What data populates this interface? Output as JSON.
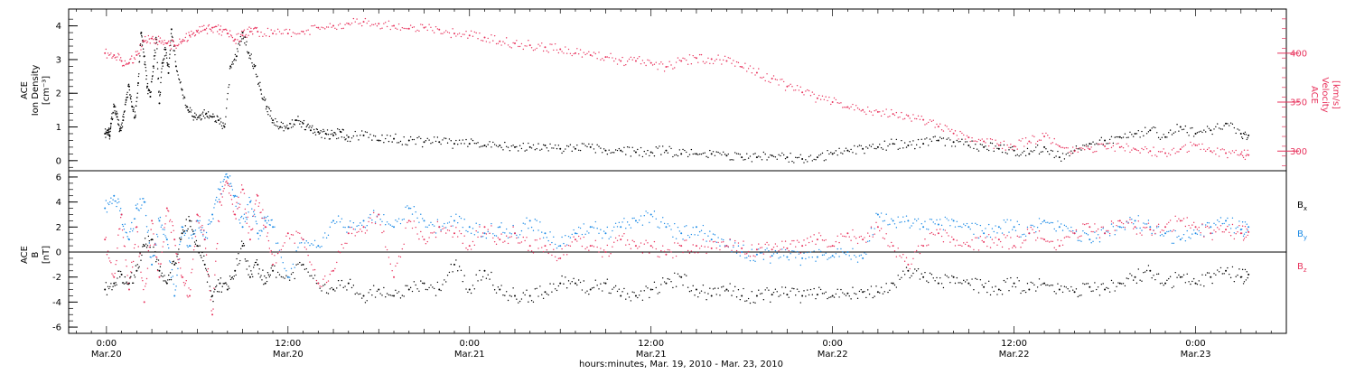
{
  "colors": {
    "black": "#000000",
    "velocity": "#e8335d",
    "bx": "#000000",
    "by": "#1a8ae6",
    "bz": "#e8335d"
  },
  "chart_data": [
    {
      "type": "scatter",
      "panel": "top",
      "ylabel_left": [
        "ACE",
        "Ion Density",
        "[cm⁻³]"
      ],
      "ylabel_right": [
        "ACE",
        "Velocity",
        "[km/s]"
      ],
      "ylim_left": [
        -0.3,
        4.5
      ],
      "yticks_left": [
        "0",
        "1",
        "2",
        "3",
        "4"
      ],
      "ylim_right": [
        280,
        445
      ],
      "yticks_right": [
        "300",
        "350",
        "400"
      ],
      "series": [
        {
          "axis": "left",
          "color_key": "black",
          "x": [
            -0.1,
            0.1,
            0.2,
            0.3,
            0.5,
            0.7,
            0.9,
            1.1,
            1.3,
            1.5,
            1.7,
            1.9,
            2.1,
            2.3,
            2.5,
            2.7,
            2.9,
            3.1,
            3.3,
            3.5,
            3.7,
            3.9,
            4.1,
            4.3,
            4.6,
            5.0,
            5.4,
            5.8,
            6.2,
            6.6,
            7.0,
            7.4,
            7.8,
            8.2,
            8.6,
            9.0,
            9.4,
            9.8,
            10.2,
            10.6,
            11.0,
            11.5,
            12.0,
            12.5,
            13.0,
            13.5,
            14.0,
            14.5,
            15.0,
            15.5,
            16.0,
            17.0,
            18.0,
            19.0,
            20.0,
            21.0,
            22.0,
            23.0,
            24.0,
            25.0,
            26.0,
            27.0,
            28.0,
            29.0,
            30.0,
            31.0,
            32.0,
            33.0,
            34.0,
            35.0,
            36.0,
            37.0,
            38.0,
            39.0,
            40.0,
            41.0,
            42.0,
            43.0,
            44.0,
            45.0,
            46.0,
            47.0,
            48.0,
            49.0,
            50.0,
            51.0,
            52.0,
            53.0,
            54.0,
            55.0,
            56.0,
            57.0,
            58.0,
            59.0,
            60.0,
            61.0,
            62.0,
            63.0,
            64.0,
            65.0,
            66.0,
            67.0,
            68.0,
            69.0,
            70.0,
            71.0,
            72.0,
            73.0,
            74.0,
            75.0,
            75.5
          ],
          "y": [
            0.8,
            0.9,
            0.75,
            1.1,
            1.6,
            1.3,
            0.9,
            1.2,
            1.8,
            2.2,
            1.6,
            1.3,
            2.3,
            3.8,
            3.1,
            2.2,
            1.9,
            2.8,
            3.6,
            1.7,
            2.9,
            3.3,
            2.6,
            3.9,
            2.8,
            2.1,
            1.5,
            1.3,
            1.35,
            1.4,
            1.3,
            1.2,
            1.0,
            2.8,
            3.1,
            3.8,
            3.2,
            2.8,
            2.1,
            1.6,
            1.2,
            1.0,
            0.95,
            1.2,
            1.1,
            0.9,
            0.85,
            0.8,
            0.75,
            0.85,
            0.7,
            0.75,
            0.6,
            0.65,
            0.6,
            0.55,
            0.55,
            0.5,
            0.5,
            0.45,
            0.45,
            0.4,
            0.4,
            0.45,
            0.35,
            0.35,
            0.4,
            0.3,
            0.3,
            0.25,
            0.25,
            0.3,
            0.2,
            0.2,
            0.2,
            0.15,
            0.1,
            0.1,
            0.15,
            0.1,
            0.05,
            0.1,
            0.2,
            0.3,
            0.35,
            0.4,
            0.5,
            0.45,
            0.5,
            0.6,
            0.55,
            0.45,
            0.4,
            0.35,
            0.3,
            0.2,
            0.4,
            0.1,
            0.3,
            0.5,
            0.6,
            0.7,
            0.8,
            0.9,
            0.7,
            1.0,
            0.8,
            0.9,
            1.1,
            0.8,
            0.75
          ]
        },
        {
          "axis": "right",
          "color_key": "velocity",
          "x": [
            -0.1,
            0.5,
            1.0,
            1.5,
            2.0,
            2.5,
            3.0,
            3.5,
            4.0,
            4.5,
            5.0,
            5.5,
            6.0,
            6.5,
            7.0,
            7.5,
            8.0,
            8.5,
            9.0,
            9.5,
            10.0,
            11.0,
            12.0,
            13.0,
            14.0,
            15.0,
            16.0,
            17.0,
            18.0,
            19.0,
            20.0,
            21.0,
            22.0,
            23.0,
            24.0,
            25.0,
            26.0,
            27.0,
            28.0,
            29.0,
            30.0,
            31.0,
            32.0,
            33.0,
            34.0,
            35.0,
            36.0,
            37.0,
            38.0,
            39.0,
            40.0,
            41.0,
            42.0,
            43.0,
            44.0,
            45.0,
            46.0,
            47.0,
            48.0,
            49.0,
            50.0,
            51.0,
            52.0,
            53.0,
            54.0,
            55.0,
            56.0,
            57.0,
            58.0,
            59.0,
            60.0,
            61.0,
            62.0,
            63.0,
            64.0,
            65.0,
            66.0,
            67.0,
            68.0,
            69.0,
            70.0,
            71.0,
            72.0,
            73.0,
            74.0,
            75.0,
            75.5
          ],
          "y": [
            400,
            398,
            392,
            390,
            398,
            412,
            415,
            412,
            410,
            408,
            412,
            418,
            422,
            424,
            426,
            424,
            420,
            414,
            418,
            422,
            422,
            420,
            420,
            422,
            426,
            428,
            430,
            432,
            430,
            428,
            425,
            426,
            424,
            420,
            418,
            416,
            412,
            410,
            408,
            406,
            404,
            400,
            398,
            396,
            392,
            392,
            390,
            386,
            392,
            395,
            394,
            392,
            386,
            380,
            374,
            366,
            360,
            354,
            350,
            345,
            342,
            340,
            338,
            336,
            332,
            325,
            318,
            314,
            310,
            306,
            305,
            310,
            315,
            305,
            300,
            302,
            305,
            304,
            302,
            300,
            298,
            302,
            306,
            300,
            298,
            297,
            296
          ]
        }
      ]
    },
    {
      "type": "scatter",
      "panel": "bottom",
      "ylabel_left": [
        "ACE",
        "B",
        "[nT]"
      ],
      "ylim": [
        -6.5,
        6.5
      ],
      "yticks": [
        "-6",
        "-4",
        "-2",
        "0",
        "2",
        "4",
        "6"
      ],
      "legend": [
        "Bx",
        "By",
        "Bz"
      ],
      "series": [
        {
          "name": "Bx",
          "color_key": "bx",
          "x": [
            -0.1,
            0.5,
            1.0,
            1.5,
            2.0,
            2.5,
            3.0,
            3.5,
            4.0,
            4.5,
            5.0,
            5.5,
            6.0,
            6.5,
            7.0,
            7.5,
            8.0,
            8.5,
            9.0,
            9.5,
            10.0,
            10.5,
            11.0,
            12.0,
            13.0,
            14.0,
            15.0,
            16.0,
            17.0,
            18.0,
            19.0,
            20.0,
            21.0,
            22.0,
            23.0,
            24.0,
            25.0,
            26.0,
            27.0,
            28.0,
            29.0,
            30.0,
            31.0,
            32.0,
            33.0,
            34.0,
            35.0,
            36.0,
            37.0,
            38.0,
            39.0,
            40.0,
            41.0,
            42.0,
            43.0,
            44.0,
            45.0,
            46.0,
            47.0,
            48.0,
            49.0,
            50.0,
            51.0,
            52.0,
            53.0,
            54.0,
            55.0,
            56.0,
            57.0,
            58.0,
            59.0,
            60.0,
            61.0,
            62.0,
            63.0,
            64.0,
            65.0,
            66.0,
            67.0,
            68.0,
            69.0,
            70.0,
            71.0,
            72.0,
            73.0,
            74.0,
            75.0,
            75.5
          ],
          "y": [
            -3.0,
            -2.5,
            -1.8,
            -2.5,
            -1.5,
            0.5,
            1.0,
            -1.5,
            -2.5,
            -1.0,
            1.5,
            2.5,
            0.5,
            -1.0,
            -3.5,
            -2.5,
            -3.0,
            -1.5,
            0.5,
            -2.0,
            -1.0,
            -2.5,
            -1.5,
            -2.0,
            -1.0,
            -2.5,
            -3.0,
            -2.5,
            -3.5,
            -3.0,
            -3.5,
            -3.0,
            -2.5,
            -3.0,
            -1.0,
            -3.0,
            -1.5,
            -3.0,
            -3.5,
            -3.5,
            -3.2,
            -2.5,
            -2.5,
            -3.0,
            -2.5,
            -3.5,
            -3.5,
            -3.0,
            -2.5,
            -2.0,
            -3.0,
            -3.5,
            -3.0,
            -3.5,
            -3.5,
            -3.4,
            -3.4,
            -3.5,
            -3.4,
            -3.5,
            -3.3,
            -3.2,
            -3.2,
            -2.5,
            -1.5,
            -2.0,
            -2.5,
            -2.0,
            -2.5,
            -2.8,
            -3.0,
            -2.5,
            -3.0,
            -2.5,
            -3.0,
            -3.2,
            -2.8,
            -3.0,
            -2.5,
            -2.0,
            -1.5,
            -2.5,
            -2.0,
            -2.5,
            -2.0,
            -1.5,
            -2.0,
            -1.8
          ]
        },
        {
          "name": "By",
          "color_key": "by",
          "x": [
            -0.1,
            0.5,
            1.0,
            1.5,
            2.0,
            2.5,
            3.0,
            3.5,
            4.0,
            4.5,
            5.0,
            5.5,
            6.0,
            6.5,
            7.0,
            7.5,
            8.0,
            8.5,
            9.0,
            9.5,
            10.0,
            10.5,
            11.0,
            12.0,
            13.0,
            14.0,
            15.0,
            16.0,
            17.0,
            18.0,
            19.0,
            20.0,
            21.0,
            22.0,
            23.0,
            24.0,
            25.0,
            26.0,
            27.0,
            28.0,
            29.0,
            30.0,
            31.0,
            32.0,
            33.0,
            34.0,
            35.0,
            36.0,
            37.0,
            38.0,
            39.0,
            40.0,
            41.0,
            42.0,
            43.0,
            44.0,
            45.0,
            46.0,
            47.0,
            48.0,
            49.0,
            50.0,
            51.0,
            52.0,
            53.0,
            54.0,
            55.0,
            56.0,
            57.0,
            58.0,
            59.0,
            60.0,
            61.0,
            62.0,
            63.0,
            64.0,
            65.0,
            66.0,
            67.0,
            68.0,
            69.0,
            70.0,
            71.0,
            72.0,
            73.0,
            74.0,
            75.0,
            75.5
          ],
          "y": [
            3.5,
            4.5,
            3.0,
            1.0,
            3.5,
            4.0,
            -1.0,
            2.5,
            1.0,
            -3.5,
            2.0,
            0.5,
            2.5,
            1.0,
            3.0,
            5.0,
            6.0,
            4.5,
            2.0,
            4.0,
            1.5,
            2.5,
            2.0,
            -2.0,
            1.0,
            0.5,
            2.5,
            2.0,
            2.5,
            3.0,
            2.0,
            3.5,
            2.5,
            2.0,
            2.5,
            2.0,
            1.5,
            2.0,
            1.5,
            2.5,
            1.5,
            0.5,
            1.5,
            2.0,
            1.5,
            2.0,
            2.5,
            3.0,
            2.0,
            1.5,
            2.0,
            1.0,
            0.5,
            0.0,
            -0.2,
            -0.3,
            -0.4,
            -0.5,
            -0.4,
            -0.3,
            0.0,
            -0.5,
            3.0,
            2.5,
            2.5,
            2.0,
            2.2,
            2.5,
            2.0,
            1.5,
            2.0,
            2.0,
            1.5,
            2.5,
            2.0,
            1.5,
            1.0,
            1.5,
            2.0,
            2.5,
            2.0,
            1.5,
            1.0,
            1.5,
            2.0,
            2.5,
            1.8,
            2.0
          ]
        },
        {
          "name": "Bz",
          "color_key": "bz",
          "x": [
            -0.1,
            0.5,
            1.0,
            1.5,
            2.0,
            2.5,
            3.0,
            3.5,
            4.0,
            4.5,
            5.0,
            5.5,
            6.0,
            6.5,
            7.0,
            7.5,
            8.0,
            8.5,
            9.0,
            9.5,
            10.0,
            10.5,
            11.0,
            12.0,
            13.0,
            14.0,
            15.0,
            16.0,
            17.0,
            18.0,
            19.0,
            20.0,
            21.0,
            22.0,
            23.0,
            24.0,
            25.0,
            26.0,
            27.0,
            28.0,
            29.0,
            30.0,
            31.0,
            32.0,
            33.0,
            34.0,
            35.0,
            36.0,
            37.0,
            38.0,
            39.0,
            40.0,
            41.0,
            42.0,
            43.0,
            44.0,
            45.0,
            46.0,
            47.0,
            48.0,
            49.0,
            50.0,
            51.0,
            52.0,
            53.0,
            54.0,
            55.0,
            56.0,
            57.0,
            58.0,
            59.0,
            60.0,
            61.0,
            62.0,
            63.0,
            64.0,
            65.0,
            66.0,
            67.0,
            68.0,
            69.0,
            70.0,
            71.0,
            72.0,
            73.0,
            74.0,
            75.0,
            75.5
          ],
          "y": [
            1.0,
            -2.0,
            3.0,
            -3.0,
            2.0,
            -4.0,
            2.5,
            -2.0,
            3.5,
            1.0,
            -2.0,
            -3.5,
            3.0,
            1.0,
            -5.0,
            4.0,
            5.5,
            3.0,
            5.0,
            1.0,
            4.5,
            2.0,
            -1.0,
            1.5,
            1.0,
            -2.5,
            -1.5,
            1.5,
            2.0,
            3.0,
            -2.0,
            2.5,
            1.0,
            2.0,
            1.5,
            0.5,
            2.0,
            1.0,
            1.5,
            0.5,
            0.5,
            -0.5,
            1.0,
            0.5,
            0.0,
            1.0,
            0.5,
            0.5,
            -0.2,
            0.5,
            0.5,
            0.3,
            0.5,
            0.3,
            0.2,
            0.2,
            0.3,
            0.5,
            1.0,
            0.5,
            1.5,
            1.0,
            2.0,
            0.5,
            -1.0,
            0.5,
            1.5,
            1.0,
            0.5,
            0.8,
            1.0,
            0.5,
            1.5,
            1.0,
            0.5,
            1.5,
            2.0,
            1.5,
            2.5,
            2.0,
            1.8,
            2.0,
            2.5,
            2.0,
            1.5,
            1.8,
            1.5,
            1.6
          ]
        }
      ]
    }
  ],
  "x_axis": {
    "xlim": [
      -2.5,
      78
    ],
    "major_ticks": [
      0,
      12,
      24,
      36,
      48,
      60,
      72
    ],
    "tick_labels": [
      {
        "time": "0:00",
        "date": "Mar.20"
      },
      {
        "time": "12:00",
        "date": "Mar.20"
      },
      {
        "time": "0:00",
        "date": "Mar.21"
      },
      {
        "time": "12:00",
        "date": "Mar.21"
      },
      {
        "time": "0:00",
        "date": "Mar.22"
      },
      {
        "time": "12:00",
        "date": "Mar.22"
      },
      {
        "time": "0:00",
        "date": "Mar.23"
      }
    ],
    "title": "hours:minutes, Mar. 19, 2010 - Mar. 23, 2010"
  }
}
